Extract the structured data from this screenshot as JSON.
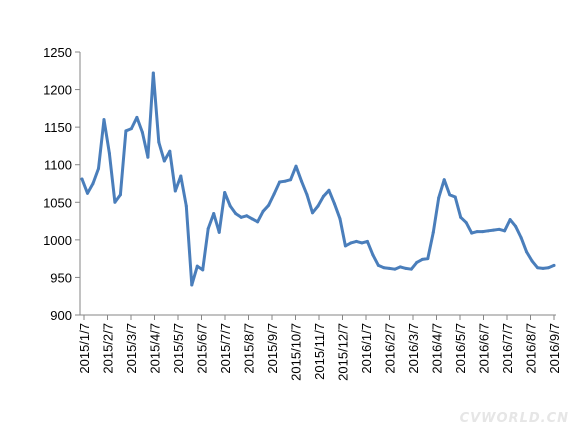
{
  "chart_data": {
    "type": "line",
    "title": "",
    "xlabel": "",
    "ylabel": "",
    "ylim": [
      900,
      1250
    ],
    "yticks": [
      900,
      950,
      1000,
      1050,
      1100,
      1150,
      1200,
      1250
    ],
    "xticks": [
      "2015/1/7",
      "2015/2/7",
      "2015/3/7",
      "2015/4/7",
      "2015/5/7",
      "2015/6/7",
      "2015/7/7",
      "2015/8/7",
      "2015/9/7",
      "2015/10/7",
      "2015/11/7",
      "2015/12/7",
      "2016/1/7",
      "2016/2/7",
      "2016/3/7",
      "2016/4/7",
      "2016/5/7",
      "2016/6/7",
      "2016/7/7",
      "2016/8/7",
      "2016/9/7"
    ],
    "grid": false,
    "line_color": "#4a7ebb",
    "series": [
      {
        "values": [
          1081,
          1062,
          1075,
          1095,
          1160,
          1115,
          1050,
          1060,
          1145,
          1148,
          1163,
          1143,
          1110,
          1222,
          1130,
          1105,
          1118,
          1065,
          1085,
          1045,
          940,
          965,
          960,
          1015,
          1035,
          1010,
          1063,
          1045,
          1035,
          1030,
          1032,
          1028,
          1024,
          1038,
          1046,
          1061,
          1077,
          1078,
          1080,
          1098,
          1078,
          1060,
          1036,
          1045,
          1058,
          1066,
          1048,
          1028,
          992,
          996,
          998,
          996,
          998,
          980,
          966,
          963,
          962,
          961,
          964,
          962,
          961,
          970,
          974,
          975,
          1010,
          1056,
          1080,
          1060,
          1057,
          1030,
          1023,
          1009,
          1011,
          1011,
          1012,
          1013,
          1014,
          1012,
          1027,
          1018,
          1003,
          984,
          972,
          963,
          962,
          963,
          966
        ]
      }
    ]
  },
  "watermark": "CVWORLD.CN"
}
